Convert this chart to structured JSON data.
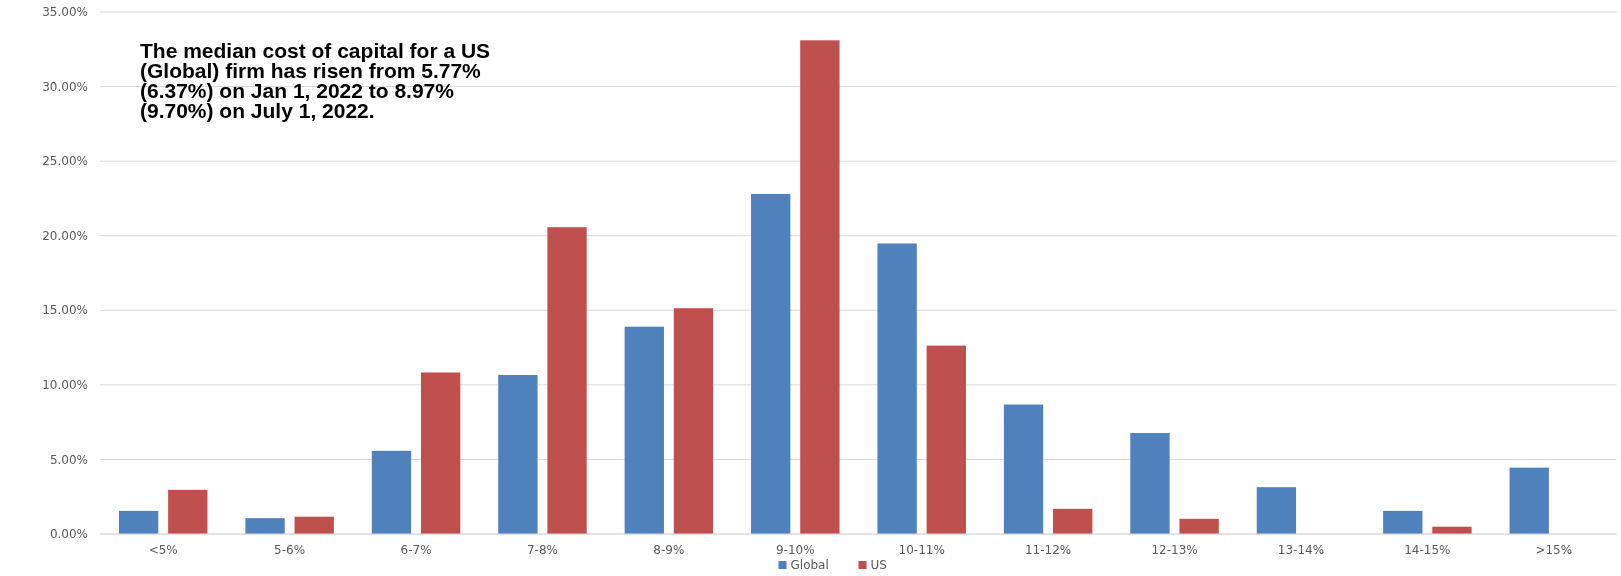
{
  "chart_data": {
    "type": "bar",
    "categories": [
      "<5%",
      "5-6%",
      "6-7%",
      "7-8%",
      "8-9%",
      "9-10%",
      "10-11%",
      "11-12%",
      "12-13%",
      "13-14%",
      "14-15%",
      ">15%"
    ],
    "series": [
      {
        "name": "Global",
        "color": "#4f81bd",
        "values": [
          1.55,
          1.06,
          5.58,
          10.66,
          13.9,
          22.8,
          19.48,
          8.68,
          6.77,
          3.14,
          1.55,
          4.45
        ]
      },
      {
        "name": "US",
        "color": "#c0504d",
        "values": [
          2.96,
          1.16,
          10.83,
          20.57,
          15.14,
          33.1,
          12.63,
          1.69,
          1.02,
          0,
          0.49,
          0
        ]
      }
    ],
    "ylim": [
      0,
      35
    ],
    "yticks": [
      {
        "value": 0,
        "label": "0.00%"
      },
      {
        "value": 5,
        "label": "5.00%"
      },
      {
        "value": 10,
        "label": "10.00%"
      },
      {
        "value": 15,
        "label": "15.00%"
      },
      {
        "value": 20,
        "label": "20.00%"
      },
      {
        "value": 25,
        "label": "25.00%"
      },
      {
        "value": 30,
        "label": "30.00%"
      },
      {
        "value": 35,
        "label": "35.00%"
      }
    ],
    "grid": "y",
    "legend": "bottom",
    "annotations": [
      "The median cost of capital for a US (Global) firm has risen from 5.77% (6.37%) on Jan 1, 2022 to 8.97% (9.70%) on July 1, 2022."
    ]
  }
}
